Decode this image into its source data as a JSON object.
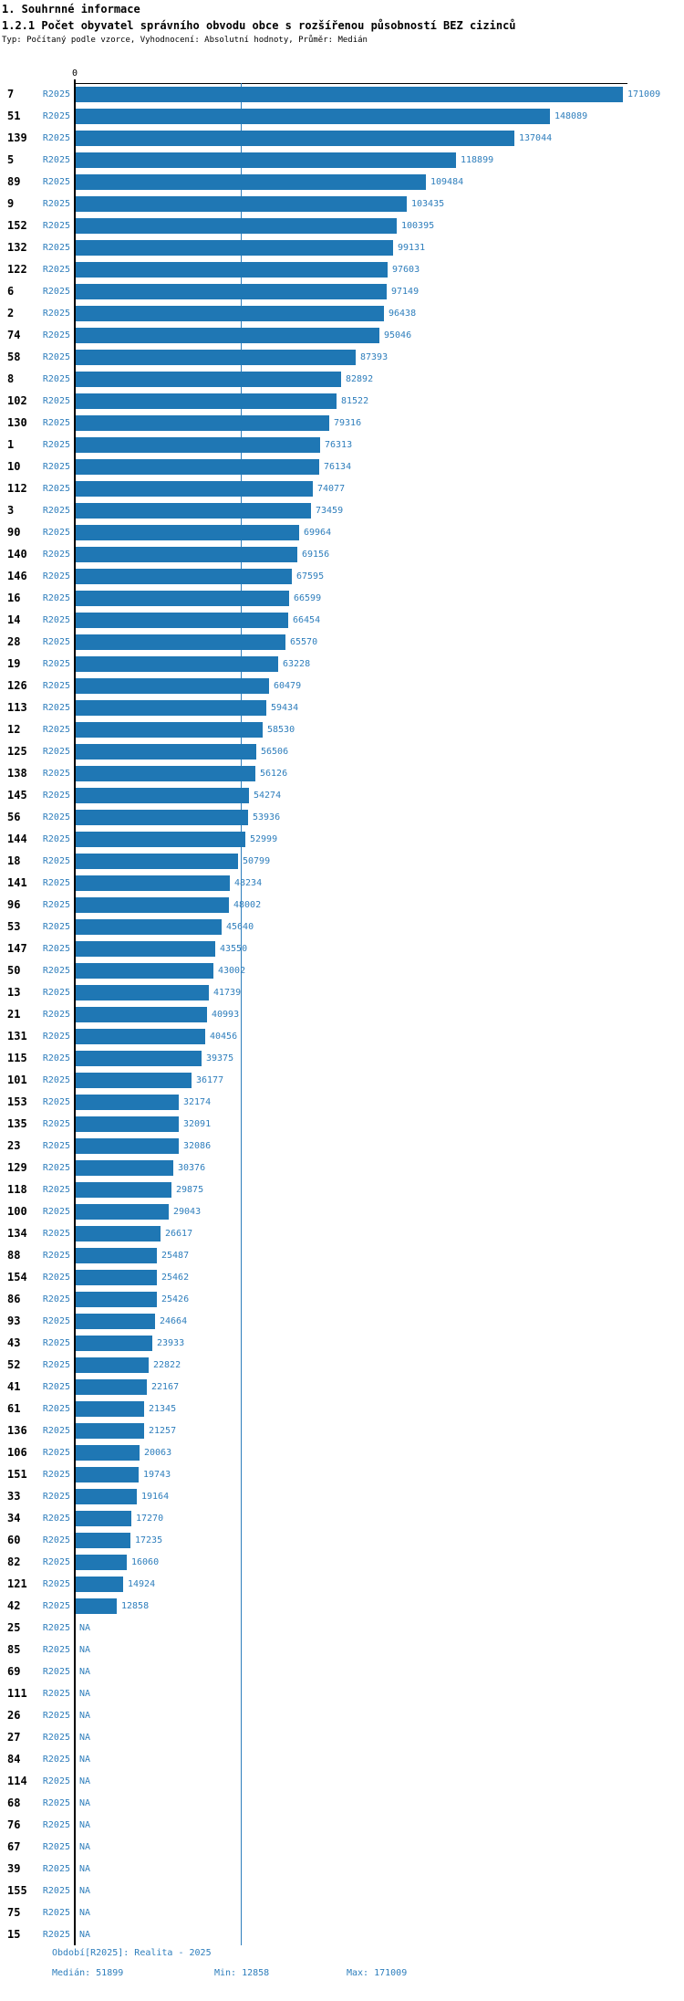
{
  "header": {
    "section_title": "1. Souhrnné informace",
    "chart_title": "1.2.1 Počet obyvatel správního obvodu obce s rozšířenou působností BEZ cizinců",
    "subtitle": "Typ: Počítaný podle vzorce, Vyhodnocení: Absolutní hodnoty, Průměr: Medián"
  },
  "chart_data": {
    "type": "bar",
    "orientation": "horizontal",
    "title": "1.2.1 Počet obyvatel správního obvodu obce s rozšířenou působností BEZ cizinců",
    "series_label": "R2025",
    "na_label": "NA",
    "axis": {
      "zero_label": "0",
      "min": 0,
      "max": 171009
    },
    "median": 51899,
    "stats": {
      "median": 51899,
      "min": 12858,
      "max": 171009
    },
    "legend_position": "none",
    "rows": [
      {
        "id": "7",
        "value": 171009
      },
      {
        "id": "51",
        "value": 148089
      },
      {
        "id": "139",
        "value": 137044
      },
      {
        "id": "5",
        "value": 118899
      },
      {
        "id": "89",
        "value": 109484
      },
      {
        "id": "9",
        "value": 103435
      },
      {
        "id": "152",
        "value": 100395
      },
      {
        "id": "132",
        "value": 99131
      },
      {
        "id": "122",
        "value": 97603
      },
      {
        "id": "6",
        "value": 97149
      },
      {
        "id": "2",
        "value": 96438
      },
      {
        "id": "74",
        "value": 95046
      },
      {
        "id": "58",
        "value": 87393
      },
      {
        "id": "8",
        "value": 82892
      },
      {
        "id": "102",
        "value": 81522
      },
      {
        "id": "130",
        "value": 79316
      },
      {
        "id": "1",
        "value": 76313
      },
      {
        "id": "10",
        "value": 76134
      },
      {
        "id": "112",
        "value": 74077
      },
      {
        "id": "3",
        "value": 73459
      },
      {
        "id": "90",
        "value": 69964
      },
      {
        "id": "140",
        "value": 69156
      },
      {
        "id": "146",
        "value": 67595
      },
      {
        "id": "16",
        "value": 66599
      },
      {
        "id": "14",
        "value": 66454
      },
      {
        "id": "28",
        "value": 65570
      },
      {
        "id": "19",
        "value": 63228
      },
      {
        "id": "126",
        "value": 60479
      },
      {
        "id": "113",
        "value": 59434
      },
      {
        "id": "12",
        "value": 58530
      },
      {
        "id": "125",
        "value": 56506
      },
      {
        "id": "138",
        "value": 56126
      },
      {
        "id": "145",
        "value": 54274
      },
      {
        "id": "56",
        "value": 53936
      },
      {
        "id": "144",
        "value": 52999
      },
      {
        "id": "18",
        "value": 50799
      },
      {
        "id": "141",
        "value": 48234
      },
      {
        "id": "96",
        "value": 48002
      },
      {
        "id": "53",
        "value": 45640
      },
      {
        "id": "147",
        "value": 43550
      },
      {
        "id": "50",
        "value": 43002
      },
      {
        "id": "13",
        "value": 41739
      },
      {
        "id": "21",
        "value": 40993
      },
      {
        "id": "131",
        "value": 40456
      },
      {
        "id": "115",
        "value": 39375
      },
      {
        "id": "101",
        "value": 36177
      },
      {
        "id": "153",
        "value": 32174
      },
      {
        "id": "135",
        "value": 32091
      },
      {
        "id": "23",
        "value": 32086
      },
      {
        "id": "129",
        "value": 30376
      },
      {
        "id": "118",
        "value": 29875
      },
      {
        "id": "100",
        "value": 29043
      },
      {
        "id": "134",
        "value": 26617
      },
      {
        "id": "88",
        "value": 25487
      },
      {
        "id": "154",
        "value": 25462
      },
      {
        "id": "86",
        "value": 25426
      },
      {
        "id": "93",
        "value": 24664
      },
      {
        "id": "43",
        "value": 23933
      },
      {
        "id": "52",
        "value": 22822
      },
      {
        "id": "41",
        "value": 22167
      },
      {
        "id": "61",
        "value": 21345
      },
      {
        "id": "136",
        "value": 21257
      },
      {
        "id": "106",
        "value": 20063
      },
      {
        "id": "151",
        "value": 19743
      },
      {
        "id": "33",
        "value": 19164
      },
      {
        "id": "34",
        "value": 17270
      },
      {
        "id": "60",
        "value": 17235
      },
      {
        "id": "82",
        "value": 16060
      },
      {
        "id": "121",
        "value": 14924
      },
      {
        "id": "42",
        "value": 12858
      },
      {
        "id": "25",
        "value": null
      },
      {
        "id": "85",
        "value": null
      },
      {
        "id": "69",
        "value": null
      },
      {
        "id": "111",
        "value": null
      },
      {
        "id": "26",
        "value": null
      },
      {
        "id": "27",
        "value": null
      },
      {
        "id": "84",
        "value": null
      },
      {
        "id": "114",
        "value": null
      },
      {
        "id": "68",
        "value": null
      },
      {
        "id": "76",
        "value": null
      },
      {
        "id": "67",
        "value": null
      },
      {
        "id": "39",
        "value": null
      },
      {
        "id": "155",
        "value": null
      },
      {
        "id": "75",
        "value": null
      },
      {
        "id": "15",
        "value": null
      }
    ]
  },
  "footer": {
    "period": "Období[R2025]: Realita - 2025",
    "median": "Medián: 51899",
    "min": "Min: 12858",
    "max": "Max: 171009"
  },
  "colors": {
    "bar": "#1f77b4",
    "text_blue": "#2e7ebc",
    "line_blue": "#2e7ebc",
    "black": "#000000",
    "background": "#ffffff"
  }
}
